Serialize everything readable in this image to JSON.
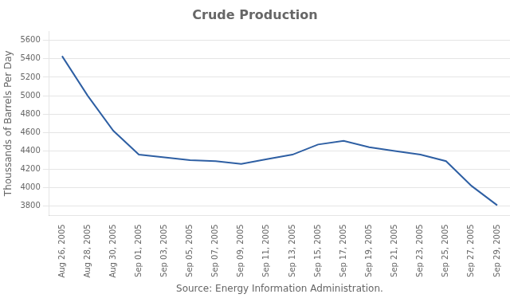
{
  "chart_data": {
    "type": "line",
    "title": "Crude Production",
    "xlabel": "Source: Energy Information Administration.",
    "ylabel": "Thoussands of Barrels Per Day",
    "categories": [
      "Aug 26, 2005",
      "Aug 28, 2005",
      "Aug 30, 2005",
      "Sep 01, 2005",
      "Sep 03, 2005",
      "Sep 05, 2005",
      "Sep 07, 2005",
      "Sep 09, 2005",
      "Sep 11, 2005",
      "Sep 13, 2005",
      "Sep 15, 2005",
      "Sep 17, 2005",
      "Sep 19, 2005",
      "Sep 21, 2005",
      "Sep 23, 2005",
      "Sep 25, 2005",
      "Sep 27, 2005",
      "Sep 29, 2005"
    ],
    "values": [
      5430,
      5000,
      4620,
      4360,
      4330,
      4300,
      4290,
      4260,
      4310,
      4360,
      4470,
      4510,
      4440,
      4400,
      4360,
      4290,
      4020,
      3810
    ],
    "color": "#2e5fa3",
    "ylim": [
      3700,
      5700
    ],
    "yticks": [
      3800,
      4000,
      4200,
      4400,
      4600,
      4800,
      5000,
      5200,
      5400,
      5600
    ],
    "grid": true
  }
}
